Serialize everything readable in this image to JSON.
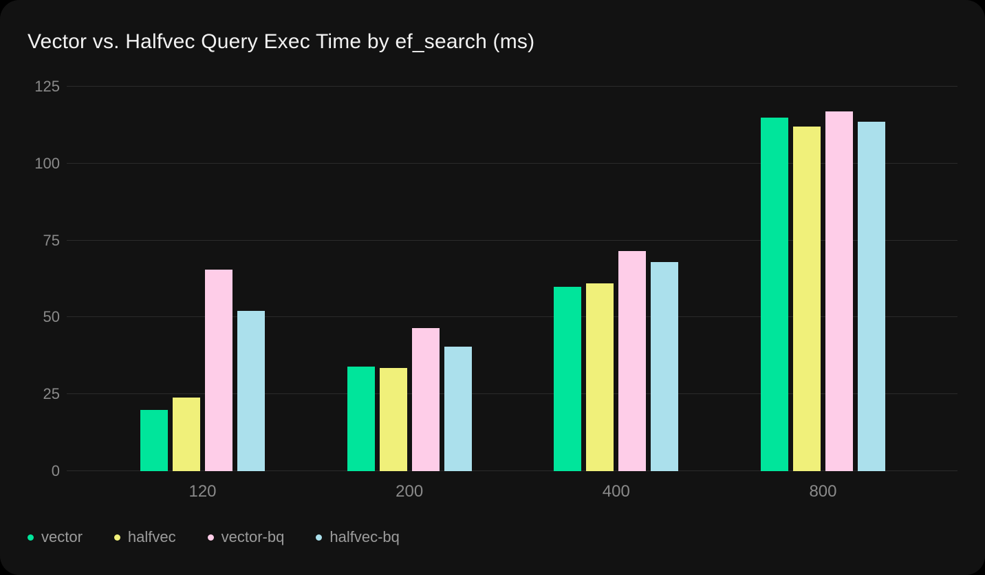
{
  "chart_data": {
    "type": "bar",
    "title": "Vector vs. Halfvec Query Exec Time by ef_search (ms)",
    "xlabel": "",
    "ylabel": "",
    "categories": [
      "120",
      "200",
      "400",
      "800"
    ],
    "series": [
      {
        "name": "vector",
        "color": "#00e59b",
        "values": [
          20,
          34,
          60,
          115
        ]
      },
      {
        "name": "halfvec",
        "color": "#f0f07a",
        "values": [
          24,
          33.5,
          61,
          112
        ]
      },
      {
        "name": "vector-bq",
        "color": "#fecde8",
        "values": [
          65.5,
          46.5,
          71.5,
          117
        ]
      },
      {
        "name": "halfvec-bq",
        "color": "#abe0ec",
        "values": [
          52,
          40.5,
          68,
          113.5
        ]
      }
    ],
    "ylim": [
      0,
      125
    ],
    "yticks": [
      0,
      25,
      50,
      75,
      100,
      125
    ],
    "grid": true,
    "legend_position": "bottom-left"
  },
  "colors": {
    "background": "#121212",
    "outer": "#000000",
    "grid": "#2b2b2b",
    "title": "#f2f2f2",
    "axis_label": "#8a8a8a",
    "legend_label": "#9c9c9c"
  }
}
